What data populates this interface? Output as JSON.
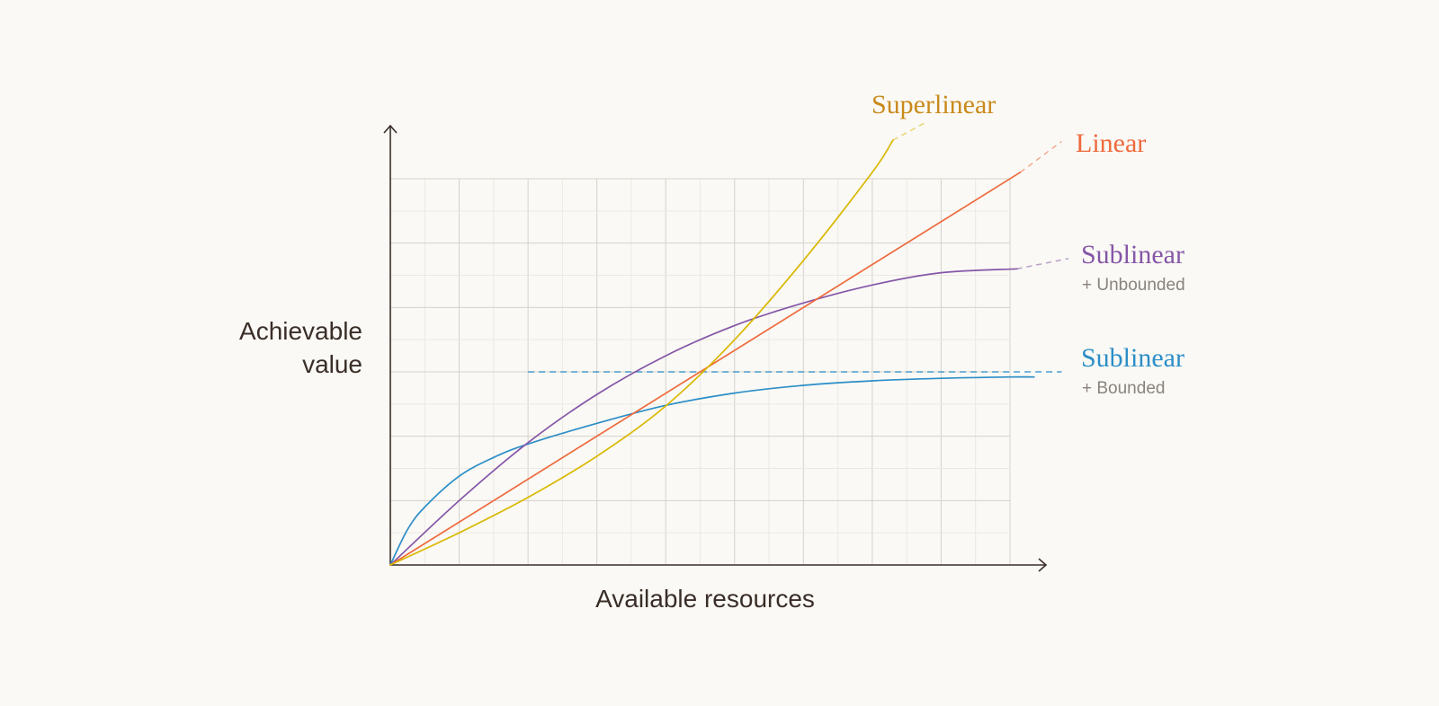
{
  "chart_data": {
    "type": "line",
    "title": "",
    "xlabel": "Available resources",
    "ylabel": [
      "Achievable",
      "value"
    ],
    "xlim": [
      0,
      9
    ],
    "ylim": [
      0,
      6
    ],
    "grid": true,
    "legend": "inline-right",
    "series": [
      {
        "name": "Superlinear",
        "subtitle": "",
        "color": "#D9B800",
        "label_color": "#C98A1C",
        "x": [
          0,
          1,
          2,
          3,
          4,
          5,
          6,
          7,
          7.3
        ],
        "y": [
          0,
          0.5,
          1.05,
          1.69,
          2.47,
          3.5,
          4.73,
          6.1,
          6.6
        ],
        "dashed_tail_x": [
          7.3,
          7.75
        ],
        "dashed_tail_y": [
          6.6,
          6.86
        ]
      },
      {
        "name": "Linear",
        "subtitle": "",
        "color": "#EE6A3C",
        "label_color": "#EE6A3C",
        "x": [
          0,
          9.15
        ],
        "y": [
          0,
          6.1
        ],
        "dashed_tail_x": [
          9.15,
          9.75
        ],
        "dashed_tail_y": [
          6.1,
          6.58
        ]
      },
      {
        "name": "Sublinear",
        "subtitle": "+ Unbounded",
        "color": "#8556A8",
        "label_color": "#8556A8",
        "x": [
          0,
          1,
          2,
          3,
          4,
          5,
          6,
          7,
          8,
          9.1
        ],
        "y": [
          0,
          1.0,
          1.9,
          2.65,
          3.25,
          3.72,
          4.07,
          4.35,
          4.54,
          4.6
        ],
        "dashed_tail_x": [
          9.1,
          9.85
        ],
        "dashed_tail_y": [
          4.6,
          4.76
        ]
      },
      {
        "name": "Sublinear",
        "subtitle": "+ Bounded",
        "color": "#2C8EC7",
        "label_color": "#2C8EC7",
        "x": [
          0,
          0.25,
          0.5,
          1,
          1.5,
          2,
          3,
          4,
          5,
          6,
          7,
          8,
          9,
          9.35
        ],
        "y": [
          0,
          0.55,
          0.9,
          1.38,
          1.67,
          1.88,
          2.2,
          2.48,
          2.67,
          2.79,
          2.86,
          2.9,
          2.92,
          2.92
        ],
        "bound": 3.0,
        "bound_from_x": 2.0,
        "bound_to_x": 9.75
      }
    ]
  }
}
